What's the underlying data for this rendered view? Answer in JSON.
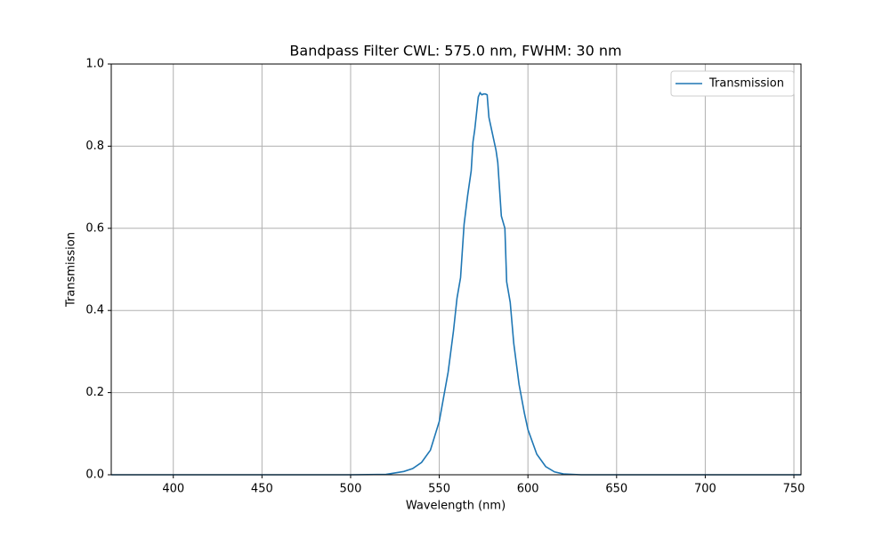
{
  "chart_data": {
    "type": "line",
    "title": "Bandpass Filter CWL: 575.0 nm, FWHM: 30 nm",
    "xlabel": "Wavelength (nm)",
    "ylabel": "Transmission",
    "x": [
      365,
      400,
      450,
      500,
      520,
      530,
      535,
      540,
      545,
      550,
      555,
      558,
      560,
      562,
      564,
      566,
      568,
      569,
      570,
      571,
      572,
      573,
      574,
      575,
      576,
      577,
      578,
      580,
      582,
      583,
      585,
      587,
      588,
      590,
      592,
      595,
      598,
      600,
      605,
      610,
      615,
      620,
      630,
      650,
      700,
      754
    ],
    "series": [
      {
        "name": "Transmission",
        "color": "#1f77b4",
        "values": [
          0,
          0,
          0,
          0,
          0.001,
          0.008,
          0.015,
          0.03,
          0.06,
          0.13,
          0.25,
          0.35,
          0.43,
          0.48,
          0.61,
          0.68,
          0.74,
          0.81,
          0.84,
          0.88,
          0.92,
          0.93,
          0.925,
          0.927,
          0.927,
          0.925,
          0.87,
          0.83,
          0.79,
          0.76,
          0.63,
          0.6,
          0.47,
          0.42,
          0.32,
          0.22,
          0.15,
          0.11,
          0.05,
          0.02,
          0.007,
          0.002,
          0,
          0,
          0,
          0
        ]
      }
    ],
    "xlim": [
      365,
      754
    ],
    "ylim": [
      0,
      1
    ],
    "xticks": [
      400,
      450,
      500,
      550,
      600,
      650,
      700,
      750
    ],
    "yticks": [
      {
        "value": 0,
        "label": "0.0"
      },
      0.2,
      0.4,
      0.6,
      0.8,
      {
        "value": 1,
        "label": "1.0"
      }
    ],
    "grid": true,
    "legend": "upper right"
  }
}
